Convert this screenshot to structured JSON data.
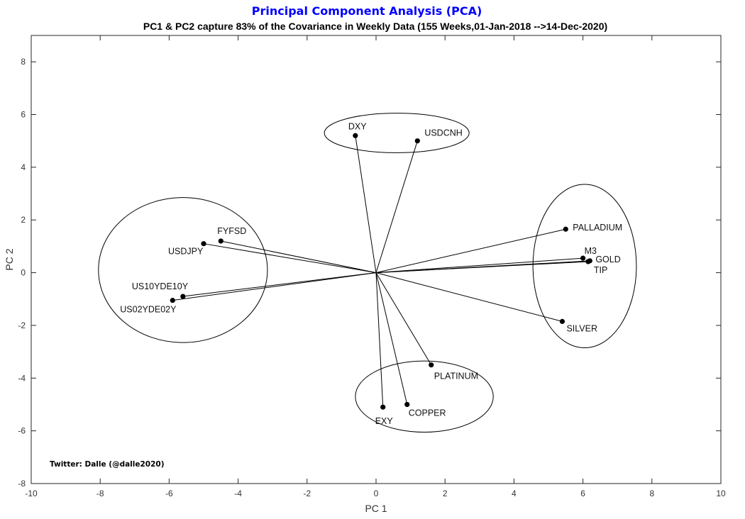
{
  "chart_data": {
    "type": "scatter",
    "title": "Principal Component Analysis (PCA)",
    "subtitle": "PC1 & PC2 capture 83% of the Covariance in Weekly Data (155 Weeks,01-Jan-2018 -->14-Dec-2020)",
    "xlabel": "PC 1",
    "ylabel": "PC 2",
    "xlim": [
      -10,
      10
    ],
    "ylim": [
      -8,
      9
    ],
    "xticks": [
      -10,
      -8,
      -6,
      -4,
      -2,
      0,
      2,
      4,
      6,
      8,
      10
    ],
    "yticks": [
      -8,
      -6,
      -4,
      -2,
      0,
      2,
      4,
      6,
      8
    ],
    "grid": false,
    "annotation": "Twitter: Dalle (@dalle2020)",
    "points": [
      {
        "label": "DXY",
        "x": -0.6,
        "y": 5.2
      },
      {
        "label": "USDCNH",
        "x": 1.2,
        "y": 5.0
      },
      {
        "label": "FYFSD",
        "x": -4.5,
        "y": 1.2
      },
      {
        "label": "USDJPY",
        "x": -5.0,
        "y": 1.1
      },
      {
        "label": "US10YDE10Y",
        "x": -5.6,
        "y": -0.9
      },
      {
        "label": "US02YDE02Y",
        "x": -5.9,
        "y": -1.05
      },
      {
        "label": "PALLADIUM",
        "x": 5.5,
        "y": 1.65
      },
      {
        "label": "M3",
        "x": 6.0,
        "y": 0.55
      },
      {
        "label": "GOLD",
        "x": 6.2,
        "y": 0.45
      },
      {
        "label": "TIP",
        "x": 6.15,
        "y": 0.42
      },
      {
        "label": "SILVER",
        "x": 5.4,
        "y": -1.85
      },
      {
        "label": "PLATINUM",
        "x": 1.6,
        "y": -3.5
      },
      {
        "label": "COPPER",
        "x": 0.9,
        "y": -5.0
      },
      {
        "label": "EXY",
        "x": 0.2,
        "y": -5.1
      }
    ],
    "clusters": [
      {
        "cx": 0.6,
        "cy": 5.3,
        "rx": 2.1,
        "ry": 0.75
      },
      {
        "cx": -5.6,
        "cy": 0.1,
        "rx": 2.45,
        "ry": 2.75
      },
      {
        "cx": 6.05,
        "cy": 0.25,
        "rx": 1.5,
        "ry": 3.1
      },
      {
        "cx": 1.4,
        "cy": -4.7,
        "rx": 2.0,
        "ry": 1.35
      }
    ]
  }
}
